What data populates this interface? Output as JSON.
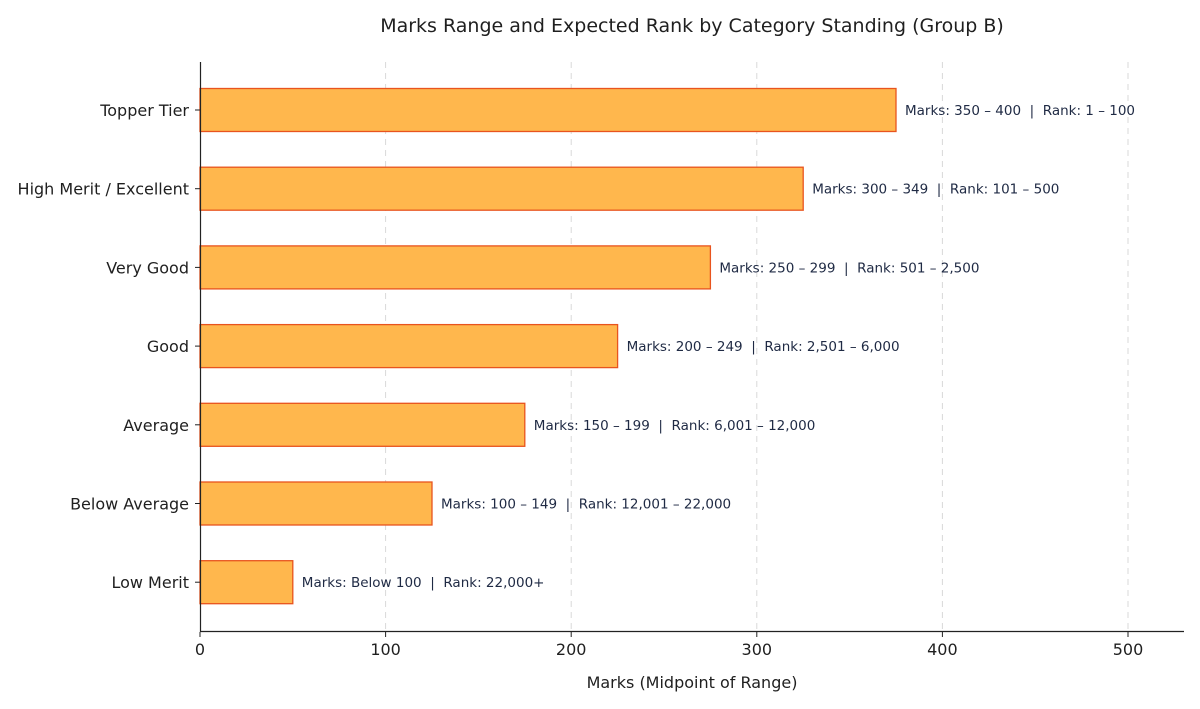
{
  "chart_data": {
    "type": "bar",
    "orientation": "horizontal",
    "title": "Marks Range and Expected Rank by Category Standing (Group B)",
    "xlabel": "Marks (Midpoint of Range)",
    "ylabel": "",
    "xlim": [
      0,
      530
    ],
    "xticks": [
      0,
      100,
      200,
      300,
      400,
      500
    ],
    "grid": "vertical dashed",
    "categories": [
      "Topper Tier",
      "High Merit / Excellent",
      "Very Good",
      "Good",
      "Average",
      "Below Average",
      "Low Merit"
    ],
    "values": [
      375,
      325,
      275,
      225,
      175,
      125,
      50
    ],
    "data_labels": [
      "Marks: 350 – 400  |  Rank: 1 – 100",
      "Marks: 300 – 349  |  Rank: 101 – 500",
      "Marks: 250 – 299  |  Rank: 501 – 2,500",
      "Marks: 200 – 249  |  Rank: 2,501 – 6,000",
      "Marks: 150 – 199  |  Rank: 6,001 – 12,000",
      "Marks: 100 – 149  |  Rank: 12,001 – 22,000",
      "Marks: Below 100  |  Rank: 22,000+"
    ],
    "colors": {
      "bar_fill": "#ffb74d",
      "bar_edge": "#e8541e",
      "grid": "#d9d9d9",
      "axis": "#222222",
      "label_text": "#1f2a44"
    }
  }
}
